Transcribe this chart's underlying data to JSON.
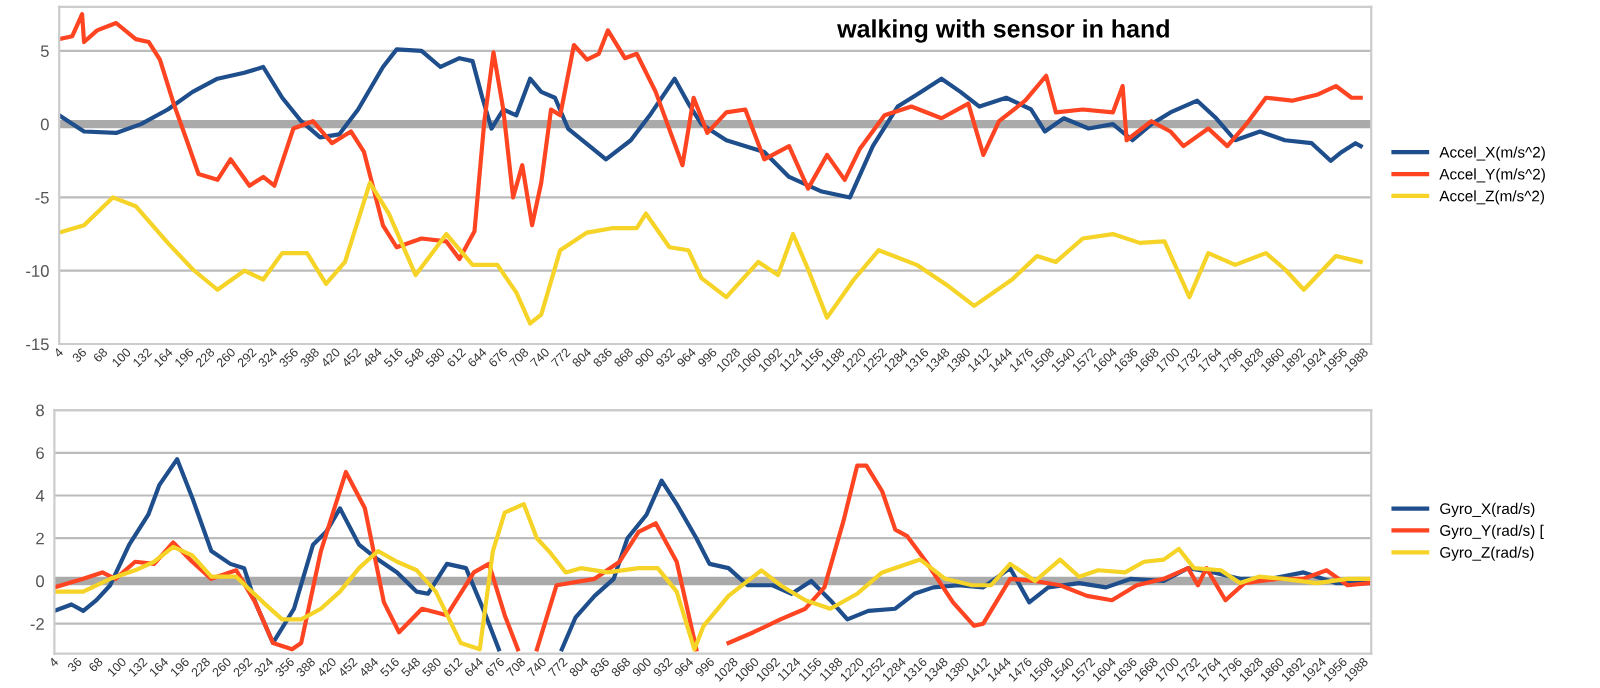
{
  "chart_data": [
    {
      "type": "line",
      "title": "walking with sensor in hand",
      "xlim": [
        4,
        2010
      ],
      "ylim": [
        -15,
        8
      ],
      "yticks": [
        -15,
        -10,
        -5,
        0,
        5
      ],
      "xticks": [
        4,
        36,
        68,
        100,
        132,
        164,
        196,
        228,
        260,
        292,
        324,
        356,
        388,
        420,
        452,
        484,
        516,
        548,
        580,
        612,
        644,
        676,
        708,
        740,
        772,
        804,
        836,
        868,
        900,
        932,
        964,
        996,
        1028,
        1060,
        1092,
        1124,
        1156,
        1188,
        1220,
        1252,
        1284,
        1316,
        1348,
        1380,
        1412,
        1444,
        1476,
        1508,
        1540,
        1572,
        1604,
        1636,
        1668,
        1700,
        1732,
        1764,
        1796,
        1828,
        1860,
        1892,
        1924,
        1956,
        1988
      ],
      "grid": "y",
      "legend": "right",
      "marker": "none",
      "line_style": "solid",
      "ref_lines": [
        {
          "axis": "y",
          "value": 0,
          "color": "#aaaaaa"
        }
      ],
      "series": [
        {
          "name": "Accel_X(m/s^2)",
          "color": "#1f4e8c",
          "x": [
            4,
            42,
            91,
            129,
            170,
            208,
            246,
            287,
            316,
            345,
            374,
            403,
            432,
            461,
            499,
            520,
            558,
            587,
            616,
            636,
            651,
            665,
            683,
            703,
            724,
            741,
            762,
            782,
            840,
            878,
            907,
            945,
            966,
            986,
            1024,
            1082,
            1120,
            1170,
            1213,
            1248,
            1286,
            1315,
            1353,
            1382,
            1411,
            1452,
            1490,
            1511,
            1540,
            1578,
            1615,
            1645,
            1674,
            1703,
            1744,
            1773,
            1802,
            1840,
            1878,
            1919,
            1948,
            1965,
            1986,
            1994
          ],
          "values": [
            0.6,
            -0.5,
            -0.6,
            0,
            1,
            2.2,
            3.1,
            3.5,
            3.9,
            1.8,
            0.2,
            -0.9,
            -0.7,
            1,
            3.9,
            5.1,
            5,
            3.9,
            4.5,
            4.3,
            1.8,
            -0.3,
            1,
            0.6,
            3.1,
            2.2,
            1.8,
            -0.3,
            -2.4,
            -1.1,
            0.6,
            3.1,
            1.4,
            0,
            -1.1,
            -1.9,
            -3.6,
            -4.6,
            -5,
            -1.5,
            1.2,
            2,
            3.1,
            2.2,
            1.2,
            1.8,
            1,
            -0.5,
            0.4,
            -0.3,
            0,
            -1.1,
            0,
            0.8,
            1.6,
            0.4,
            -1.1,
            -0.5,
            -1.1,
            -1.3,
            -2.5,
            -1.9,
            -1.3,
            -1.5
          ]
        },
        {
          "name": "Accel_Y(m/s^2)",
          "color": "#ff4422",
          "x": [
            4,
            24,
            39,
            42,
            62,
            91,
            121,
            141,
            158,
            179,
            199,
            217,
            246,
            266,
            295,
            316,
            333,
            362,
            392,
            421,
            450,
            470,
            499,
            520,
            558,
            596,
            616,
            639,
            654,
            668,
            683,
            698,
            712,
            727,
            741,
            756,
            770,
            791,
            811,
            829,
            843,
            869,
            887,
            916,
            957,
            974,
            995,
            1024,
            1053,
            1082,
            1120,
            1149,
            1178,
            1205,
            1228,
            1266,
            1307,
            1353,
            1394,
            1417,
            1441,
            1481,
            1513,
            1528,
            1569,
            1615,
            1630,
            1636,
            1674,
            1703,
            1723,
            1761,
            1790,
            1819,
            1849,
            1889,
            1927,
            1956,
            1980,
            1994
          ],
          "values": [
            5.8,
            6,
            7.5,
            5.6,
            6.4,
            6.9,
            5.8,
            5.6,
            4.4,
            1.4,
            -1.1,
            -3.4,
            -3.8,
            -2.4,
            -4.2,
            -3.6,
            -4.2,
            -0.3,
            0.2,
            -1.3,
            -0.5,
            -1.9,
            -6.9,
            -8.4,
            -7.8,
            -8,
            -9.2,
            -7.3,
            0.2,
            4.9,
            1,
            -5,
            -2.8,
            -6.9,
            -4,
            1,
            0.6,
            5.4,
            4.4,
            4.8,
            6.4,
            4.5,
            4.8,
            2.2,
            -2.8,
            1.8,
            -0.6,
            0.8,
            1,
            -2.4,
            -1.5,
            -4.4,
            -2.1,
            -3.8,
            -1.7,
            0.6,
            1.2,
            0.4,
            1.4,
            -2.1,
            0.2,
            1.6,
            3.3,
            0.8,
            1,
            0.8,
            2.6,
            -1.1,
            0.2,
            -0.5,
            -1.5,
            -0.3,
            -1.5,
            0,
            1.8,
            1.6,
            2,
            2.6,
            1.8,
            1.8
          ]
        },
        {
          "name": "Accel_Z(m/s^2)",
          "color": "#f5d327",
          "x": [
            4,
            42,
            86,
            121,
            170,
            208,
            246,
            287,
            316,
            345,
            383,
            412,
            441,
            479,
            508,
            549,
            596,
            636,
            674,
            703,
            724,
            741,
            770,
            811,
            849,
            887,
            901,
            937,
            966,
            986,
            1024,
            1073,
            1103,
            1126,
            1149,
            1178,
            1219,
            1257,
            1315,
            1365,
            1403,
            1461,
            1499,
            1528,
            1569,
            1615,
            1656,
            1694,
            1732,
            1761,
            1802,
            1849,
            1878,
            1907,
            1956,
            1994
          ],
          "values": [
            -7.4,
            -6.9,
            -5,
            -5.6,
            -8.1,
            -9.9,
            -11.3,
            -10,
            -10.6,
            -8.8,
            -8.8,
            -10.9,
            -9.4,
            -4,
            -6.1,
            -10.3,
            -7.5,
            -9.6,
            -9.6,
            -11.5,
            -13.6,
            -13,
            -8.6,
            -7.4,
            -7.1,
            -7.1,
            -6.1,
            -8.4,
            -8.6,
            -10.5,
            -11.8,
            -9.4,
            -10.3,
            -7.5,
            -9.9,
            -13.2,
            -10.6,
            -8.6,
            -9.6,
            -11.1,
            -12.4,
            -10.6,
            -9,
            -9.4,
            -7.8,
            -7.5,
            -8.1,
            -8,
            -11.8,
            -8.8,
            -9.6,
            -8.8,
            -9.9,
            -11.3,
            -9,
            -9.4
          ]
        }
      ]
    },
    {
      "type": "line",
      "xlim": [
        4,
        2010
      ],
      "ylim": [
        -3.4,
        8
      ],
      "yticks": [
        -2,
        0,
        2,
        4,
        6,
        8
      ],
      "xticks": [
        4,
        36,
        68,
        100,
        132,
        164,
        196,
        228,
        260,
        292,
        324,
        356,
        388,
        420,
        452,
        484,
        516,
        548,
        580,
        612,
        644,
        676,
        708,
        740,
        772,
        804,
        836,
        868,
        900,
        932,
        964,
        996,
        1028,
        1060,
        1092,
        1124,
        1156,
        1188,
        1220,
        1252,
        1284,
        1316,
        1348,
        1380,
        1412,
        1444,
        1476,
        1508,
        1540,
        1572,
        1604,
        1636,
        1668,
        1700,
        1732,
        1764,
        1796,
        1828,
        1860,
        1892,
        1924,
        1956,
        1988
      ],
      "grid": "y",
      "legend": "right",
      "marker": "none",
      "line_style": "solid",
      "ref_lines": [
        {
          "axis": "y",
          "value": 0,
          "color": "#aaaaaa"
        }
      ],
      "series": [
        {
          "name": "Gyro_X(rad/s)",
          "color": "#1f4e8c",
          "x": [
            4,
            30,
            48,
            68,
            89,
            118,
            147,
            164,
            191,
            214,
            243,
            272,
            293,
            310,
            337,
            369,
            398,
            418,
            439,
            468,
            497,
            526,
            556,
            573,
            602,
            631,
            661,
            681,
            731,
            777,
            798,
            827,
            856,
            877,
            906,
            929,
            952,
            982,
            1002,
            1031,
            1060,
            1098,
            1127,
            1157,
            1186,
            1212,
            1244,
            1285,
            1314,
            1343,
            1381,
            1419,
            1460,
            1489,
            1518,
            1565,
            1606,
            1644,
            1694,
            1731,
            1770,
            1810,
            1857,
            1907,
            1956,
            2009
          ],
          "values": [
            -1.4,
            -1.1,
            -1.4,
            -0.9,
            -0.2,
            1.7,
            3.1,
            4.5,
            5.7,
            3.9,
            1.4,
            0.8,
            0.6,
            -1,
            -2.9,
            -1.3,
            1.7,
            2.3,
            3.4,
            1.7,
            1,
            0.4,
            -0.5,
            -0.6,
            0.8,
            0.6,
            -1.6,
            -3.2,
            null,
            -3.2,
            -1.7,
            -0.7,
            0.1,
            2,
            3.1,
            4.7,
            3.6,
            2,
            0.8,
            0.6,
            -0.2,
            -0.2,
            -0.6,
            0,
            -0.9,
            -1.8,
            -1.4,
            -1.3,
            -0.6,
            -0.3,
            -0.2,
            -0.3,
            0.6,
            -1,
            -0.3,
            -0.1,
            -0.3,
            0.1,
            0,
            0.6,
            0.4,
            0.1,
            0.1,
            0.4,
            -0.1,
            -0.1
          ]
        },
        {
          "name": "Gyro_Y(rad/s) [",
          "color": "#ff4422",
          "x": [
            4,
            48,
            77,
            97,
            127,
            156,
            185,
            214,
            243,
            281,
            310,
            337,
            366,
            380,
            410,
            448,
            477,
            506,
            529,
            564,
            602,
            643,
            666,
            690,
            710,
            725,
            739,
            769,
            827,
            865,
            894,
            920,
            952,
            982,
            1005,
            1031,
            1069,
            1110,
            1148,
            1177,
            1206,
            1227,
            1241,
            1265,
            1285,
            1303,
            1332,
            1373,
            1405,
            1419,
            1460,
            1498,
            1536,
            1577,
            1615,
            1653,
            1694,
            1731,
            1746,
            1759,
            1788,
            1817,
            1867,
            1907,
            1942,
            1974,
            2009
          ],
          "values": [
            -0.3,
            0.1,
            0.4,
            0.1,
            0.9,
            0.8,
            1.8,
            0.9,
            0.1,
            0.5,
            -1,
            -2.9,
            -3.2,
            -2.9,
            1.4,
            5.1,
            3.4,
            -1,
            -2.4,
            -1.3,
            -1.6,
            0.4,
            0.8,
            -1.6,
            -3.2,
            null,
            -3.2,
            -0.2,
            0.1,
            0.9,
            2.3,
            2.7,
            0.9,
            -3.2,
            null,
            -2.9,
            -2.4,
            -1.8,
            -1.3,
            -0.3,
            2.8,
            5.4,
            5.4,
            4.2,
            2.4,
            2.1,
            0.9,
            -1,
            -2.1,
            -2,
            0.1,
            0,
            -0.2,
            -0.7,
            -0.9,
            -0.2,
            0.1,
            0.6,
            -0.2,
            0.6,
            -0.9,
            -0.1,
            0.1,
            0.1,
            0.5,
            -0.2,
            -0.1
          ]
        },
        {
          "name": "Gyro_Z(rad/s)",
          "color": "#f5d327",
          "x": [
            4,
            48,
            89,
            127,
            156,
            185,
            214,
            243,
            281,
            322,
            351,
            380,
            410,
            439,
            468,
            497,
            526,
            556,
            585,
            623,
            652,
            672,
            690,
            719,
            739,
            760,
            783,
            806,
            847,
            894,
            923,
            952,
            979,
            993,
            1031,
            1081,
            1110,
            1148,
            1186,
            1227,
            1265,
            1323,
            1361,
            1402,
            1431,
            1460,
            1498,
            1536,
            1565,
            1594,
            1635,
            1664,
            1694,
            1717,
            1740,
            1781,
            1810,
            1839,
            1877,
            1927,
            1974,
            2009
          ],
          "values": [
            -0.5,
            -0.5,
            0.1,
            0.5,
            0.9,
            1.6,
            1.2,
            0.2,
            0.2,
            -1,
            -1.8,
            -1.8,
            -1.3,
            -0.5,
            0.6,
            1.4,
            0.9,
            0.5,
            -0.5,
            -2.9,
            -3.2,
            1.4,
            3.2,
            3.6,
            2,
            1.3,
            0.4,
            0.6,
            0.4,
            0.6,
            0.6,
            -0.5,
            -3.2,
            -2.1,
            -0.7,
            0.5,
            -0.2,
            -0.9,
            -1.3,
            -0.6,
            0.4,
            1,
            0.1,
            -0.2,
            -0.2,
            0.8,
            0,
            1,
            0.2,
            0.5,
            0.4,
            0.9,
            1,
            1.5,
            0.6,
            0.5,
            -0.1,
            0.2,
            0.1,
            -0.1,
            0.1,
            0.1
          ]
        }
      ]
    }
  ]
}
